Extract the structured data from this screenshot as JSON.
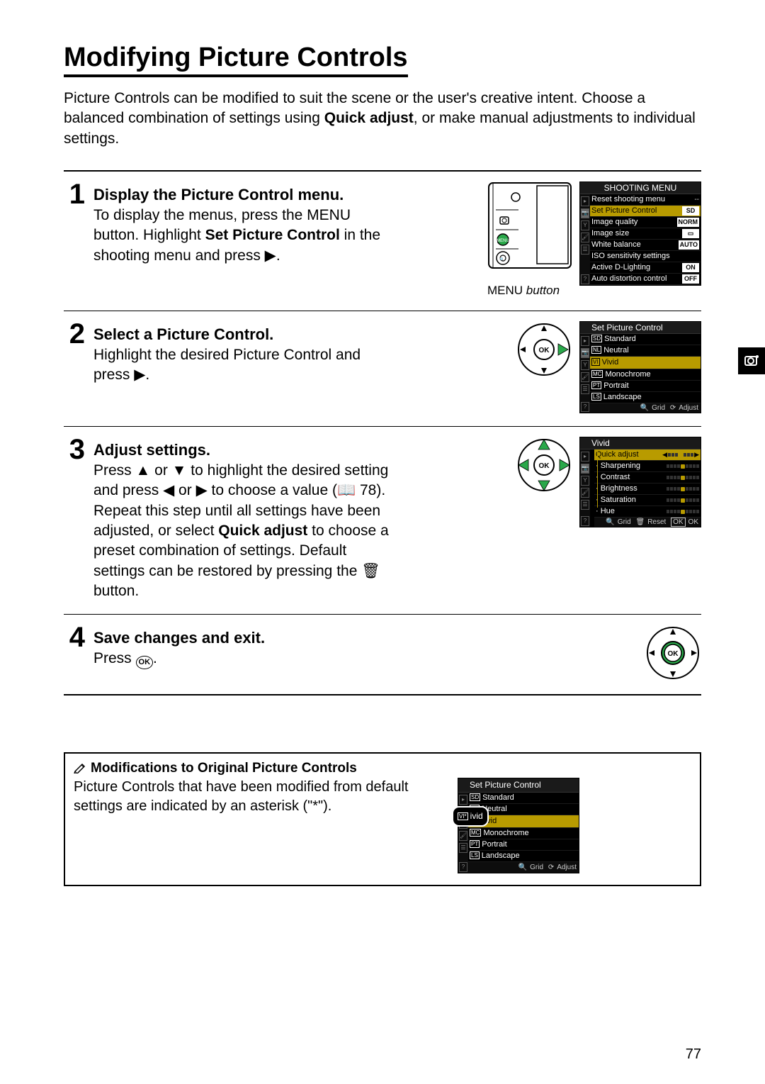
{
  "title": "Modifying Picture Controls",
  "intro_parts": [
    "Picture Controls can be modified to suit the scene or the user's creative intent. Choose a balanced combination of settings using ",
    "Quick adjust",
    ", or make manual adjustments to individual settings."
  ],
  "page_number": "77",
  "steps": [
    {
      "num": "1",
      "title": "Display the Picture Control menu.",
      "text_parts": [
        "To display the menus, press the ",
        "MENU",
        " button. Highlight ",
        "Set Picture Control",
        " in the shooting menu and press ",
        "▶",
        "."
      ],
      "caption_prefix": "MENU",
      "caption_suffix": " button"
    },
    {
      "num": "2",
      "title": "Select a Picture Control.",
      "text_parts": [
        "Highlight the desired Picture Control and press ",
        "▶",
        "."
      ]
    },
    {
      "num": "3",
      "title": "Adjust settings.",
      "text_parts": [
        "Press ",
        "▲",
        " or ",
        "▼",
        " to highlight the desired setting and press ",
        "◀",
        " or ",
        "▶",
        " to choose a value (📖 78). Repeat this step until all settings have been adjusted, or select ",
        "Quick adjust",
        " to choose a preset combination of settings.  Default settings can be restored by pressing the 🗑 button."
      ]
    },
    {
      "num": "4",
      "title": "Save changes and exit.",
      "text_parts": [
        "Press ",
        "OK",
        "."
      ]
    }
  ],
  "shooting_menu": {
    "title": "SHOOTING MENU",
    "rows": [
      {
        "label": "Reset shooting menu",
        "value": "--",
        "type": "dash"
      },
      {
        "label": "Set Picture Control",
        "value": "SD",
        "type": "badge",
        "hi": true
      },
      {
        "label": "Image quality",
        "value": "NORM",
        "type": "badge"
      },
      {
        "label": "Image size",
        "value": "▭",
        "type": "badge"
      },
      {
        "label": "White balance",
        "value": "AUTO",
        "type": "badge"
      },
      {
        "label": "ISO sensitivity settings",
        "value": "",
        "type": "none"
      },
      {
        "label": "Active D-Lighting",
        "value": "ON",
        "type": "badge"
      },
      {
        "label": "Auto distortion control",
        "value": "OFF",
        "type": "badge"
      }
    ]
  },
  "picture_control_menu": {
    "title": "Set Picture Control",
    "rows": [
      {
        "prefix": "SD",
        "label": "Standard"
      },
      {
        "prefix": "NL",
        "label": "Neutral"
      },
      {
        "prefix": "VI",
        "label": "Vivid",
        "hi": true,
        "ok": true
      },
      {
        "prefix": "MC",
        "label": "Monochrome"
      },
      {
        "prefix": "PT",
        "label": "Portrait"
      },
      {
        "prefix": "LS",
        "label": "Landscape"
      }
    ],
    "foot": [
      "Grid",
      "Adjust"
    ]
  },
  "adjust_menu": {
    "title": "Vivid",
    "rows": [
      {
        "label": "Quick adjust",
        "hi": true
      },
      {
        "label": "Sharpening"
      },
      {
        "label": "Contrast"
      },
      {
        "label": "Brightness"
      },
      {
        "label": "Saturation"
      },
      {
        "label": "Hue"
      }
    ],
    "foot": [
      "Grid",
      "Reset",
      "OK"
    ]
  },
  "note": {
    "title": "Modifications to Original Picture Controls",
    "text": "Picture Controls that have been modified from default settings are indicated by an asterisk (\"*\").",
    "mag_prefix": "VI*",
    "mag_label": "ivid"
  },
  "colors": {
    "highlight": "#b89b00",
    "green": "#2aa84a"
  }
}
